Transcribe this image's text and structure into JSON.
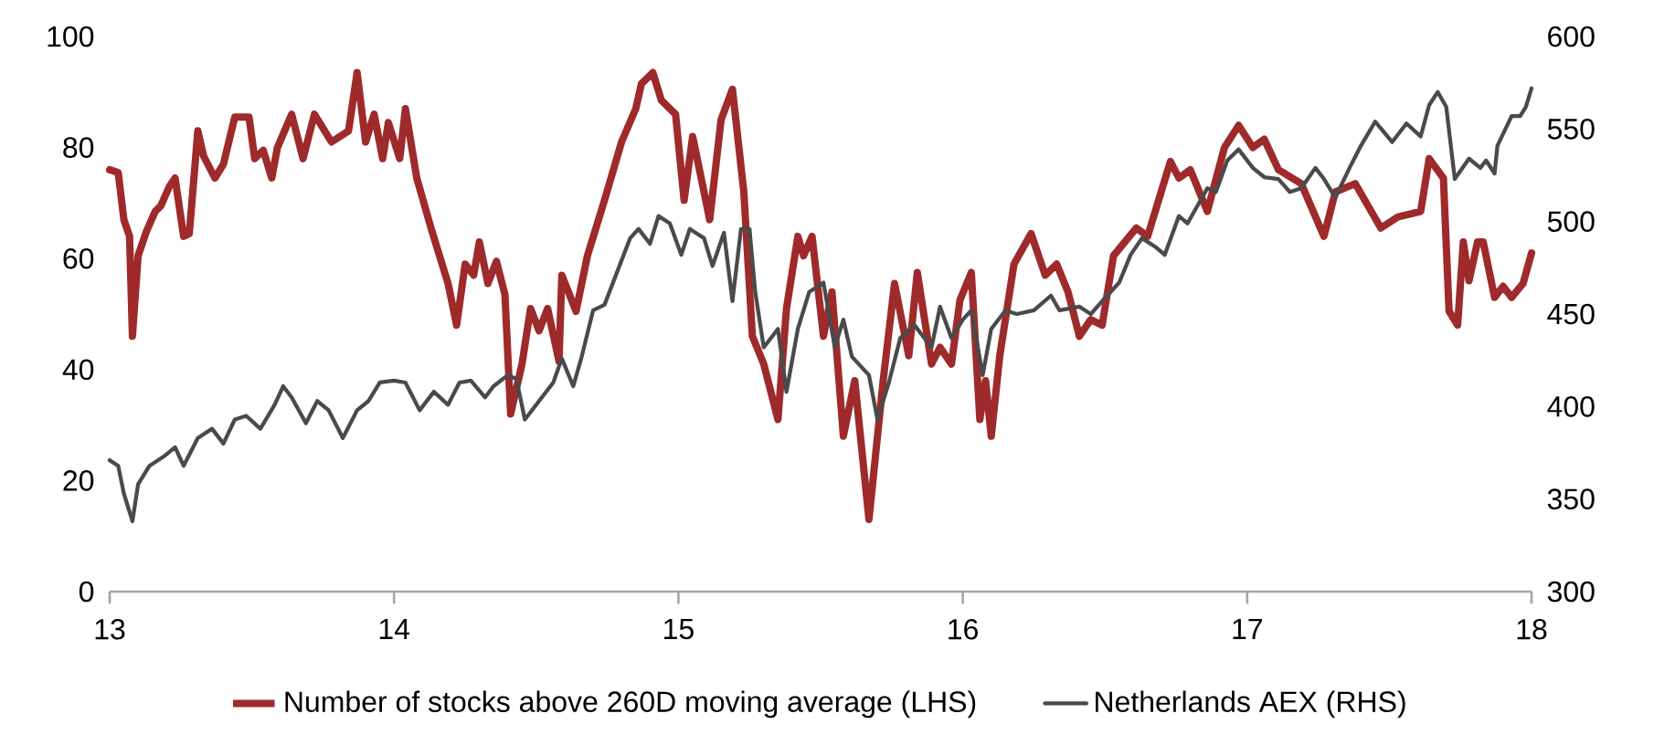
{
  "chart_data": {
    "type": "line",
    "xlim": [
      13,
      18
    ],
    "xticks": [
      13,
      14,
      15,
      16,
      17,
      18
    ],
    "ylim": [
      0,
      100
    ],
    "yticks": [
      0,
      20,
      40,
      60,
      80,
      100
    ],
    "y2lim": [
      300,
      600
    ],
    "y2ticks": [
      300,
      350,
      400,
      450,
      500,
      550,
      600
    ],
    "legend": "bottom",
    "series": [
      {
        "name": "Number of stocks above 260D moving average (LHS)",
        "color": "#9e2a2b",
        "x": [
          13.0,
          13.03,
          13.05,
          13.07,
          13.08,
          13.1,
          13.13,
          13.16,
          13.18,
          13.21,
          13.23,
          13.26,
          13.28,
          13.31,
          13.33,
          13.37,
          13.4,
          13.44,
          13.49,
          13.51,
          13.54,
          13.57,
          13.59,
          13.64,
          13.68,
          13.72,
          13.78,
          13.84,
          13.87,
          13.9,
          13.93,
          13.96,
          13.98,
          14.02,
          14.04,
          14.08,
          14.13,
          14.19,
          14.22,
          14.25,
          14.28,
          14.3,
          14.33,
          14.36,
          14.39,
          14.41,
          14.45,
          14.48,
          14.51,
          14.54,
          14.58,
          14.59,
          14.64,
          14.68,
          14.74,
          14.8,
          14.85,
          14.87,
          14.91,
          14.94,
          14.99,
          15.02,
          15.05,
          15.11,
          15.15,
          15.19,
          15.23,
          15.26,
          15.3,
          15.35,
          15.38,
          15.42,
          15.44,
          15.47,
          15.51,
          15.54,
          15.58,
          15.62,
          15.67,
          15.72,
          15.76,
          15.81,
          15.84,
          15.89,
          15.92,
          15.96,
          15.99,
          16.03,
          16.06,
          16.08,
          16.1,
          16.13,
          16.18,
          16.24,
          16.29,
          16.33,
          16.37,
          16.41,
          16.45,
          16.49,
          16.53,
          16.61,
          16.65,
          16.73,
          16.76,
          16.8,
          16.86,
          16.92,
          16.97,
          17.02,
          17.06,
          17.11,
          17.19,
          17.27,
          17.31,
          17.38,
          17.47,
          17.53,
          17.61,
          17.64,
          17.69,
          17.71,
          17.74,
          17.76,
          17.78,
          17.81,
          17.83,
          17.87,
          17.9,
          17.93,
          17.97,
          18.0
        ],
        "values": [
          76,
          75.5,
          67,
          64,
          46,
          60.5,
          65,
          68.5,
          69.5,
          73,
          74.5,
          64,
          64.5,
          83,
          78.5,
          74.5,
          77,
          85.5,
          85.5,
          78,
          79.5,
          74.5,
          80,
          86,
          78,
          86,
          81,
          83,
          93.5,
          81,
          86,
          78,
          84.5,
          78,
          87,
          74.5,
          65.5,
          55.5,
          48,
          59,
          57,
          63,
          55.5,
          59.5,
          53.5,
          32,
          41,
          51,
          47,
          51,
          41.5,
          57,
          50.5,
          60.5,
          70.5,
          81,
          87,
          91.5,
          93.5,
          88.5,
          86,
          70.5,
          82,
          67,
          85,
          90.5,
          72,
          46,
          41,
          31,
          51,
          64,
          60.5,
          64,
          46,
          54,
          28,
          38,
          13,
          38,
          55.5,
          42.5,
          57.5,
          41,
          44,
          41,
          52.5,
          57.5,
          31,
          38,
          28,
          42.5,
          59,
          64.5,
          57,
          59,
          54,
          46,
          49,
          48,
          60.5,
          65.5,
          64,
          77.5,
          74.5,
          76,
          68.5,
          80,
          84,
          80,
          81.5,
          76,
          73.5,
          64,
          72,
          73.5,
          65.5,
          67.5,
          68.5,
          78,
          74.5,
          50.5,
          48,
          63,
          56,
          63,
          63,
          53,
          55,
          53,
          55.5,
          61
        ]
      },
      {
        "name": "Netherlands AEX (RHS)",
        "color": "#4a4a4c",
        "axis": "y2",
        "x": [
          13.0,
          13.03,
          13.05,
          13.08,
          13.1,
          13.14,
          13.19,
          13.23,
          13.26,
          13.31,
          13.36,
          13.4,
          13.44,
          13.48,
          13.53,
          13.58,
          13.61,
          13.64,
          13.69,
          13.73,
          13.77,
          13.82,
          13.87,
          13.91,
          13.95,
          14.0,
          14.04,
          14.09,
          14.14,
          14.19,
          14.23,
          14.27,
          14.32,
          14.35,
          14.4,
          14.43,
          14.46,
          14.51,
          14.56,
          14.59,
          14.63,
          14.66,
          14.7,
          14.74,
          14.8,
          14.83,
          14.86,
          14.9,
          14.93,
          14.97,
          15.01,
          15.04,
          15.09,
          15.12,
          15.16,
          15.19,
          15.22,
          15.25,
          15.27,
          15.3,
          15.35,
          15.38,
          15.42,
          15.46,
          15.51,
          15.55,
          15.58,
          15.61,
          15.67,
          15.7,
          15.74,
          15.78,
          15.83,
          15.89,
          15.92,
          15.96,
          16.0,
          16.03,
          16.07,
          16.1,
          16.15,
          16.19,
          16.25,
          16.31,
          16.34,
          16.41,
          16.45,
          16.49,
          16.55,
          16.59,
          16.63,
          16.68,
          16.71,
          16.76,
          16.79,
          16.86,
          16.89,
          16.93,
          16.97,
          17.02,
          17.06,
          17.11,
          17.15,
          17.19,
          17.24,
          17.27,
          17.31,
          17.36,
          17.4,
          17.45,
          17.51,
          17.56,
          17.61,
          17.64,
          17.67,
          17.7,
          17.73,
          17.78,
          17.82,
          17.84,
          17.87,
          17.88,
          17.93,
          17.96,
          17.98,
          18.0
        ],
        "values": [
          371,
          368,
          353,
          338,
          358,
          368,
          373,
          378,
          368,
          383,
          388,
          380,
          393,
          395,
          388,
          401,
          411,
          405,
          391,
          403,
          398,
          383,
          398,
          403,
          413,
          414,
          413,
          398,
          408,
          401,
          413,
          414,
          405,
          411,
          417,
          415,
          393,
          403,
          413,
          426,
          411,
          427,
          452,
          455,
          479,
          491,
          496,
          488,
          503,
          499,
          482,
          496,
          491,
          476,
          494,
          457,
          496,
          496,
          462,
          432,
          442,
          408,
          442,
          462,
          467,
          432,
          447,
          427,
          417,
          393,
          413,
          437,
          444,
          432,
          454,
          437,
          447,
          452,
          417,
          442,
          452,
          450,
          452,
          460,
          452,
          454,
          450,
          457,
          467,
          482,
          491,
          486,
          482,
          503,
          499,
          518,
          516,
          533,
          539,
          529,
          524,
          523,
          516,
          518,
          529,
          523,
          513,
          529,
          541,
          554,
          543,
          553,
          546,
          563,
          570,
          562,
          523,
          534,
          529,
          533,
          526,
          541,
          557,
          557,
          562,
          572
        ]
      }
    ]
  }
}
